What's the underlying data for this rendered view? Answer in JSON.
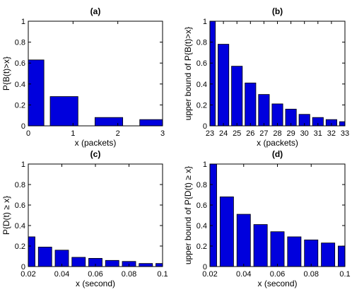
{
  "chart_data": [
    {
      "type": "bar",
      "title": "(a)",
      "xlabel": "x (packets)",
      "ylabel": "P{B(t)>x}",
      "xlim": [
        0,
        3
      ],
      "ylim": [
        0,
        1
      ],
      "xticks": [
        0,
        1,
        2,
        3
      ],
      "xtick_labels": [
        "0",
        "1",
        "2",
        "3"
      ],
      "yticks": [
        0,
        0.2,
        0.4,
        0.6,
        0.8,
        1
      ],
      "ytick_labels": [
        "0",
        "0.2",
        "0.4",
        "0.6",
        "0.8",
        "1"
      ],
      "bar_width": 0.62,
      "x": [
        0.04,
        0.8,
        1.8,
        2.8
      ],
      "values": [
        0.63,
        0.28,
        0.08,
        0.06
      ],
      "color": "#0000dd"
    },
    {
      "type": "bar",
      "title": "(b)",
      "xlabel": "x (packets)",
      "ylabel": "upper bound of P{B(t)>x}",
      "xlim": [
        23,
        33
      ],
      "ylim": [
        0,
        1
      ],
      "xticks": [
        23,
        24,
        25,
        26,
        27,
        28,
        29,
        30,
        31,
        32,
        33
      ],
      "xtick_labels": [
        "23",
        "24",
        "25",
        "26",
        "27",
        "28",
        "29",
        "30",
        "31",
        "32",
        "33"
      ],
      "yticks": [
        0,
        0.2,
        0.4,
        0.6,
        0.8,
        1
      ],
      "ytick_labels": [
        "0",
        "0.2",
        "0.4",
        "0.6",
        "0.8",
        "1"
      ],
      "bar_width": 0.8,
      "x": [
        23,
        24,
        25,
        26,
        27,
        28,
        29,
        30,
        31,
        32,
        33
      ],
      "values": [
        1.0,
        0.78,
        0.57,
        0.41,
        0.3,
        0.21,
        0.16,
        0.11,
        0.08,
        0.06,
        0.04
      ],
      "color": "#0000dd"
    },
    {
      "type": "bar",
      "title": "(c)",
      "xlabel": "x (second)",
      "ylabel": "P{D(t) ≥ x}",
      "xlim": [
        0.02,
        0.1
      ],
      "ylim": [
        0,
        1
      ],
      "xticks": [
        0.02,
        0.04,
        0.06,
        0.08,
        0.1
      ],
      "xtick_labels": [
        "0.02",
        "0.04",
        "0.06",
        "0.08",
        "0.1"
      ],
      "yticks": [
        0,
        0.2,
        0.4,
        0.6,
        0.8,
        1
      ],
      "ytick_labels": [
        "0",
        "0.2",
        "0.4",
        "0.6",
        "0.8",
        "1"
      ],
      "bar_width": 0.008,
      "x": [
        0.02,
        0.03,
        0.04,
        0.05,
        0.06,
        0.07,
        0.08,
        0.09,
        0.1
      ],
      "values": [
        0.29,
        0.19,
        0.16,
        0.09,
        0.08,
        0.06,
        0.05,
        0.03,
        0.03
      ],
      "color": "#0000dd"
    },
    {
      "type": "bar",
      "title": "(d)",
      "xlabel": "x (second)",
      "ylabel": "upper bound of P{D(t) ≥ x}",
      "xlim": [
        0.02,
        0.1
      ],
      "ylim": [
        0,
        1
      ],
      "xticks": [
        0.02,
        0.04,
        0.06,
        0.08,
        0.1
      ],
      "xtick_labels": [
        "0.02",
        "0.04",
        "0.06",
        "0.08",
        "0.1"
      ],
      "yticks": [
        0,
        0.2,
        0.4,
        0.6,
        0.8,
        1
      ],
      "ytick_labels": [
        "0",
        "0.2",
        "0.4",
        "0.6",
        "0.8",
        "1"
      ],
      "bar_width": 0.008,
      "x": [
        0.02,
        0.03,
        0.04,
        0.05,
        0.06,
        0.07,
        0.08,
        0.09,
        0.1
      ],
      "values": [
        1.0,
        0.68,
        0.51,
        0.41,
        0.34,
        0.29,
        0.26,
        0.23,
        0.2
      ],
      "color": "#0000dd"
    }
  ]
}
